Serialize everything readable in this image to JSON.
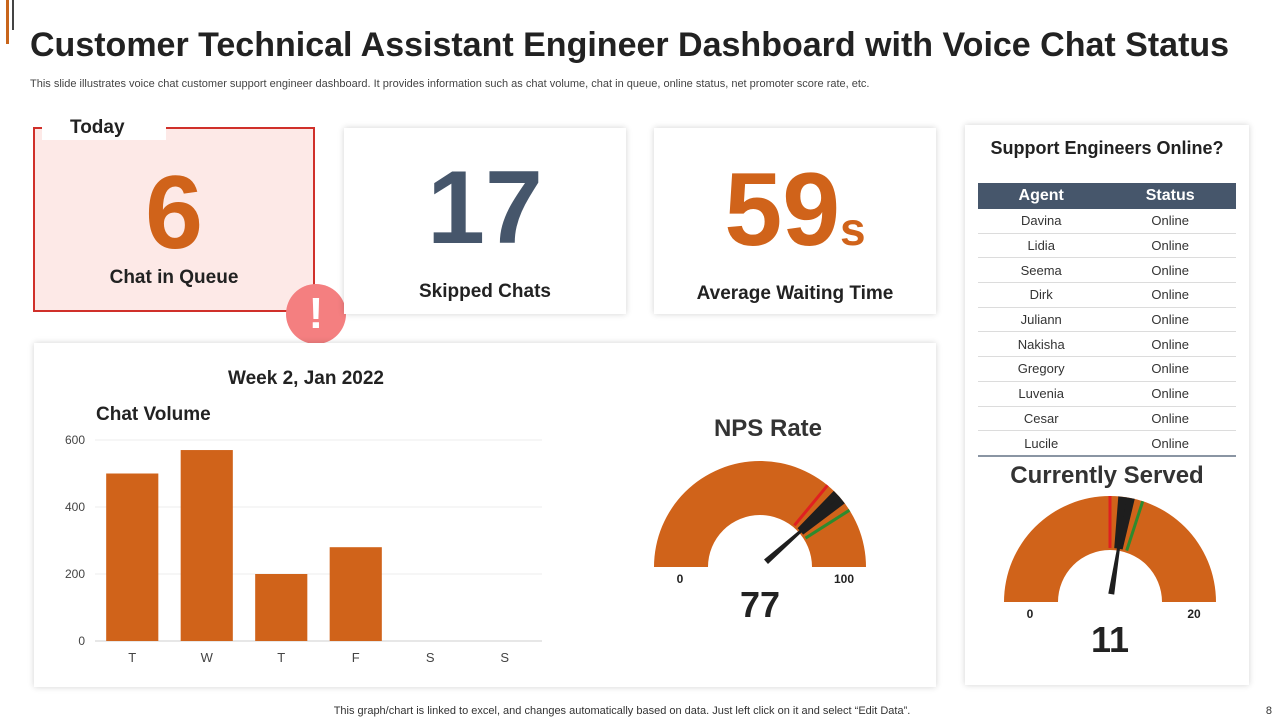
{
  "header": {
    "title": "Customer Technical Assistant Engineer Dashboard with Voice Chat Status",
    "subtitle": "This slide illustrates voice chat customer support engineer dashboard. It provides information such as chat volume, chat in queue, online status, net promoter score rate, etc."
  },
  "queue": {
    "tag": "Today",
    "value": "6",
    "label": "Chat in Queue",
    "alert_symbol": "!"
  },
  "skipped": {
    "value": "17",
    "label": "Skipped Chats"
  },
  "waiting": {
    "value": "59",
    "unit": "s",
    "label": "Average Waiting Time"
  },
  "week_label": "Week 2, Jan 2022",
  "chart_data": [
    {
      "type": "bar",
      "title": "Chat Volume",
      "categories": [
        "T",
        "W",
        "T",
        "F",
        "S",
        "S"
      ],
      "values": [
        500,
        570,
        200,
        280,
        0,
        0
      ],
      "ylim": [
        0,
        600
      ],
      "yticks": [
        0,
        200,
        400,
        600
      ],
      "xlabel": "",
      "ylabel": ""
    }
  ],
  "nps": {
    "title": "NPS Rate",
    "value": 77,
    "min": 0,
    "max": 100,
    "min_label": "0",
    "max_label": "100",
    "value_label": "77"
  },
  "served": {
    "title": "Currently Served",
    "value": 11,
    "min": 0,
    "max": 20,
    "min_label": "0",
    "max_label": "20",
    "value_label": "11"
  },
  "engineers": {
    "title": "Support Engineers Online?",
    "columns": [
      "Agent",
      "Status"
    ],
    "rows": [
      [
        "Davina",
        "Online"
      ],
      [
        "Lidia",
        "Online"
      ],
      [
        "Seema",
        "Online"
      ],
      [
        "Dirk",
        "Online"
      ],
      [
        "Juliann",
        "Online"
      ],
      [
        "Nakisha",
        "Online"
      ],
      [
        "Gregory",
        "Online"
      ],
      [
        "Luvenia",
        "Online"
      ],
      [
        "Cesar",
        "Online"
      ],
      [
        "Lucile",
        "Online"
      ]
    ]
  },
  "footer": "This graph/chart is linked to excel, and changes automatically based on data. Just left click on it and select “Edit Data”.",
  "page_number": "8",
  "colors": {
    "accent": "#d0631a",
    "dark_number": "#46566b",
    "alert": "#f47f80",
    "queue_bg": "#fde9e7",
    "queue_border": "#d0302a",
    "table_header": "#46566b"
  }
}
